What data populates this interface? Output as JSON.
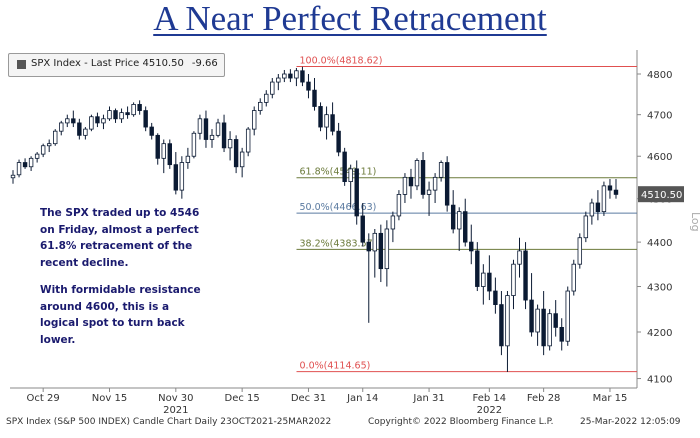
{
  "header": {
    "title": "A Near Perfect Retracement"
  },
  "legend": {
    "label": "SPX Index - Last Price 4510.50",
    "change": "-9.66"
  },
  "annotations": {
    "note1": "The SPX traded up to 4546 on Friday, almost a perfect 61.8% retracement of the recent decline.",
    "note2": "With formidable resistance around 4600, this is a logical spot to turn back lower."
  },
  "footer": {
    "left": "SPX Index (S&P 500 INDEX) Candle Chart  Daily 23OCT2021-25MAR2022",
    "center": "Copyright© 2022 Bloomberg Finance L.P.",
    "right": "25-Mar-2022 12:05:09"
  },
  "colors": {
    "up": "#ffffff",
    "down": "#0b1a33",
    "fib_top": "#e05050",
    "fib_618": "#6b7a3a",
    "fib_50": "#5a7aa0",
    "fib_382": "#6b7a3a",
    "fib_bottom": "#e05050",
    "last_price_tag": "#555555"
  },
  "chart_data": {
    "type": "candlestick",
    "title": "A Near Perfect Retracement",
    "ylim": [
      4080,
      4860
    ],
    "y_ticks": [
      4100,
      4200,
      4300,
      4400,
      4500,
      4600,
      4700,
      4800
    ],
    "y_scale": "log",
    "y_axis_label": "Log",
    "last_price": {
      "value": 4510.5,
      "label": "4510.50"
    },
    "x_ticks": [
      {
        "label": "Oct 29",
        "index": 5
      },
      {
        "label": "Nov 15",
        "index": 16
      },
      {
        "label": "Nov 30",
        "index": 27
      },
      {
        "label": "Dec 15",
        "index": 38
      },
      {
        "label": "Dec 31",
        "index": 49
      },
      {
        "label": "Jan 14",
        "index": 58
      },
      {
        "label": "Jan 31",
        "index": 69
      },
      {
        "label": "Feb 14",
        "index": 79
      },
      {
        "label": "Feb 28",
        "index": 88
      },
      {
        "label": "Mar 15",
        "index": 99
      }
    ],
    "year_labels": [
      {
        "label": "2021",
        "index": 27
      },
      {
        "label": "2022",
        "index": 79
      }
    ],
    "fib_levels": [
      {
        "label": "100.0%(4818.62)",
        "value": 4818.62,
        "key": "fib_top"
      },
      {
        "label": "61.8%(4549.11)",
        "value": 4549.11,
        "key": "fib_618"
      },
      {
        "label": "50.0%(4466.63)",
        "value": 4466.63,
        "key": "fib_50"
      },
      {
        "label": "38.2%(4383.57)",
        "value": 4383.57,
        "key": "fib_382"
      },
      {
        "label": "0.0%(4114.65)",
        "value": 4114.65,
        "key": "fib_bottom"
      }
    ],
    "candles": [
      [
        4549,
        4567,
        4535,
        4555
      ],
      [
        4556,
        4592,
        4550,
        4585
      ],
      [
        4585,
        4595,
        4570,
        4575
      ],
      [
        4575,
        4600,
        4565,
        4595
      ],
      [
        4595,
        4610,
        4585,
        4605
      ],
      [
        4605,
        4630,
        4598,
        4625
      ],
      [
        4625,
        4640,
        4610,
        4630
      ],
      [
        4630,
        4665,
        4625,
        4660
      ],
      [
        4660,
        4685,
        4650,
        4680
      ],
      [
        4680,
        4700,
        4670,
        4690
      ],
      [
        4690,
        4710,
        4670,
        4680
      ],
      [
        4680,
        4690,
        4640,
        4650
      ],
      [
        4650,
        4670,
        4640,
        4665
      ],
      [
        4665,
        4700,
        4660,
        4695
      ],
      [
        4695,
        4705,
        4670,
        4680
      ],
      [
        4680,
        4700,
        4665,
        4690
      ],
      [
        4690,
        4720,
        4685,
        4710
      ],
      [
        4710,
        4715,
        4680,
        4690
      ],
      [
        4690,
        4715,
        4680,
        4705
      ],
      [
        4705,
        4720,
        4690,
        4700
      ],
      [
        4700,
        4730,
        4695,
        4725
      ],
      [
        4725,
        4735,
        4700,
        4710
      ],
      [
        4710,
        4720,
        4660,
        4670
      ],
      [
        4670,
        4680,
        4640,
        4650
      ],
      [
        4650,
        4655,
        4580,
        4595
      ],
      [
        4595,
        4640,
        4560,
        4630
      ],
      [
        4630,
        4640,
        4570,
        4580
      ],
      [
        4580,
        4610,
        4510,
        4520
      ],
      [
        4520,
        4600,
        4500,
        4585
      ],
      [
        4585,
        4620,
        4570,
        4600
      ],
      [
        4600,
        4660,
        4595,
        4655
      ],
      [
        4655,
        4700,
        4640,
        4690
      ],
      [
        4690,
        4710,
        4620,
        4640
      ],
      [
        4640,
        4665,
        4620,
        4650
      ],
      [
        4650,
        4690,
        4645,
        4680
      ],
      [
        4680,
        4700,
        4610,
        4620
      ],
      [
        4620,
        4660,
        4590,
        4640
      ],
      [
        4640,
        4650,
        4560,
        4575
      ],
      [
        4575,
        4620,
        4550,
        4610
      ],
      [
        4610,
        4670,
        4600,
        4665
      ],
      [
        4665,
        4720,
        4650,
        4710
      ],
      [
        4710,
        4740,
        4700,
        4730
      ],
      [
        4730,
        4760,
        4720,
        4750
      ],
      [
        4750,
        4790,
        4740,
        4780
      ],
      [
        4780,
        4800,
        4760,
        4790
      ],
      [
        4790,
        4810,
        4780,
        4800
      ],
      [
        4800,
        4812,
        4780,
        4790
      ],
      [
        4790,
        4815,
        4770,
        4808
      ],
      [
        4808,
        4818,
        4770,
        4780
      ],
      [
        4780,
        4800,
        4740,
        4760
      ],
      [
        4760,
        4790,
        4710,
        4720
      ],
      [
        4720,
        4730,
        4660,
        4670
      ],
      [
        4670,
        4720,
        4640,
        4700
      ],
      [
        4700,
        4730,
        4650,
        4660
      ],
      [
        4660,
        4680,
        4600,
        4610
      ],
      [
        4610,
        4620,
        4530,
        4540
      ],
      [
        4540,
        4580,
        4480,
        4570
      ],
      [
        4570,
        4590,
        4440,
        4460
      ],
      [
        4460,
        4490,
        4390,
        4400
      ],
      [
        4400,
        4420,
        4220,
        4380
      ],
      [
        4380,
        4430,
        4320,
        4420
      ],
      [
        4420,
        4440,
        4310,
        4340
      ],
      [
        4340,
        4450,
        4300,
        4430
      ],
      [
        4430,
        4470,
        4400,
        4460
      ],
      [
        4460,
        4520,
        4450,
        4510
      ],
      [
        4510,
        4560,
        4490,
        4550
      ],
      [
        4550,
        4570,
        4500,
        4530
      ],
      [
        4530,
        4595,
        4520,
        4590
      ],
      [
        4590,
        4610,
        4500,
        4510
      ],
      [
        4510,
        4540,
        4460,
        4520
      ],
      [
        4520,
        4560,
        4490,
        4550
      ],
      [
        4550,
        4590,
        4540,
        4585
      ],
      [
        4585,
        4600,
        4470,
        4485
      ],
      [
        4485,
        4520,
        4420,
        4430
      ],
      [
        4430,
        4480,
        4380,
        4470
      ],
      [
        4470,
        4500,
        4390,
        4400
      ],
      [
        4400,
        4440,
        4350,
        4380
      ],
      [
        4380,
        4400,
        4290,
        4300
      ],
      [
        4300,
        4350,
        4260,
        4330
      ],
      [
        4330,
        4370,
        4270,
        4290
      ],
      [
        4290,
        4320,
        4240,
        4260
      ],
      [
        4260,
        4290,
        4150,
        4170
      ],
      [
        4170,
        4290,
        4114,
        4280
      ],
      [
        4280,
        4360,
        4250,
        4350
      ],
      [
        4350,
        4410,
        4320,
        4380
      ],
      [
        4380,
        4400,
        4250,
        4270
      ],
      [
        4270,
        4330,
        4190,
        4200
      ],
      [
        4200,
        4260,
        4170,
        4250
      ],
      [
        4250,
        4290,
        4150,
        4170
      ],
      [
        4170,
        4250,
        4160,
        4240
      ],
      [
        4240,
        4270,
        4190,
        4210
      ],
      [
        4210,
        4230,
        4160,
        4180
      ],
      [
        4180,
        4300,
        4170,
        4290
      ],
      [
        4290,
        4360,
        4280,
        4350
      ],
      [
        4350,
        4420,
        4340,
        4410
      ],
      [
        4410,
        4470,
        4400,
        4460
      ],
      [
        4460,
        4500,
        4440,
        4490
      ],
      [
        4490,
        4520,
        4450,
        4470
      ],
      [
        4470,
        4540,
        4460,
        4530
      ],
      [
        4530,
        4546,
        4500,
        4520
      ],
      [
        4520,
        4546,
        4500,
        4510
      ]
    ]
  }
}
